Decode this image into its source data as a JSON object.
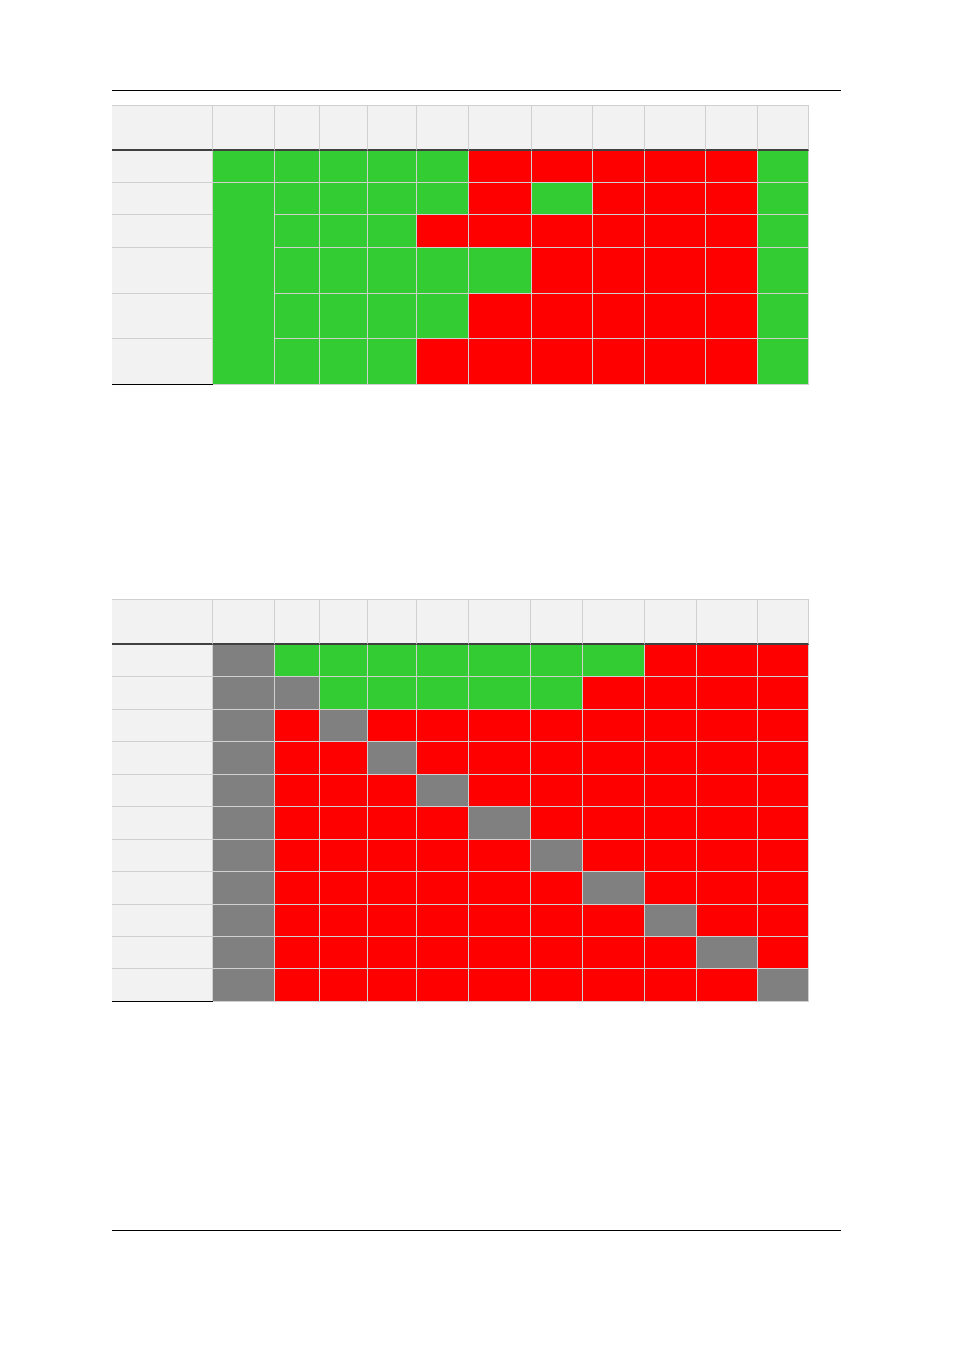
{
  "table_1": {
    "rows": [
      [
        "#33cc33",
        "#33cc33",
        "#33cc33",
        "#33cc33",
        "#33cc33",
        "#ff0000",
        "#ff0000",
        "#ff0000",
        "#ff0000",
        "#ff0000",
        "#33cc33"
      ],
      [
        "#33cc33",
        "#33cc33",
        "#33cc33",
        "#33cc33",
        "#33cc33",
        "#ff0000",
        "#33cc33",
        "#ff0000",
        "#ff0000",
        "#ff0000",
        "#33cc33"
      ],
      [
        "#33cc33",
        "#33cc33",
        "#33cc33",
        "#ff0000",
        "#ff0000",
        "#ff0000",
        "#ff0000",
        "#ff0000",
        "#ff0000",
        "#33cc33"
      ],
      [
        "#33cc33",
        "#33cc33",
        "#33cc33",
        "#33cc33",
        "#33cc33",
        "#ff0000",
        "#ff0000",
        "#ff0000",
        "#ff0000",
        "#33cc33"
      ],
      [
        "#33cc33",
        "#33cc33",
        "#33cc33",
        "#33cc33",
        "#ff0000",
        "#ff0000",
        "#ff0000",
        "#ff0000",
        "#ff0000",
        "#33cc33"
      ],
      [
        "#33cc33",
        "#33cc33",
        "#33cc33",
        "#ff0000",
        "#ff0000",
        "#ff0000",
        "#ff0000",
        "#ff0000",
        "#ff0000",
        "#33cc33"
      ]
    ]
  },
  "table_2": {
    "rows": [
      [
        "#808080",
        "#33cc33",
        "#33cc33",
        "#33cc33",
        "#33cc33",
        "#33cc33",
        "#33cc33",
        "#33cc33",
        "#ff0000",
        "#ff0000",
        "#ff0000"
      ],
      [
        "#808080",
        "#808080",
        "#33cc33",
        "#33cc33",
        "#33cc33",
        "#33cc33",
        "#33cc33",
        "#ff0000",
        "#ff0000",
        "#ff0000",
        "#ff0000"
      ],
      [
        "#808080",
        "#ff0000",
        "#808080",
        "#ff0000",
        "#ff0000",
        "#ff0000",
        "#ff0000",
        "#ff0000",
        "#ff0000",
        "#ff0000",
        "#ff0000"
      ],
      [
        "#808080",
        "#ff0000",
        "#ff0000",
        "#808080",
        "#ff0000",
        "#ff0000",
        "#ff0000",
        "#ff0000",
        "#ff0000",
        "#ff0000",
        "#ff0000"
      ],
      [
        "#808080",
        "#ff0000",
        "#ff0000",
        "#ff0000",
        "#808080",
        "#ff0000",
        "#ff0000",
        "#ff0000",
        "#ff0000",
        "#ff0000",
        "#ff0000"
      ],
      [
        "#808080",
        "#ff0000",
        "#ff0000",
        "#ff0000",
        "#ff0000",
        "#808080",
        "#ff0000",
        "#ff0000",
        "#ff0000",
        "#ff0000",
        "#ff0000"
      ],
      [
        "#808080",
        "#ff0000",
        "#ff0000",
        "#ff0000",
        "#ff0000",
        "#ff0000",
        "#808080",
        "#ff0000",
        "#ff0000",
        "#ff0000",
        "#ff0000"
      ],
      [
        "#808080",
        "#ff0000",
        "#ff0000",
        "#ff0000",
        "#ff0000",
        "#ff0000",
        "#ff0000",
        "#808080",
        "#ff0000",
        "#ff0000",
        "#ff0000"
      ],
      [
        "#808080",
        "#ff0000",
        "#ff0000",
        "#ff0000",
        "#ff0000",
        "#ff0000",
        "#ff0000",
        "#ff0000",
        "#808080",
        "#ff0000",
        "#ff0000"
      ],
      [
        "#808080",
        "#ff0000",
        "#ff0000",
        "#ff0000",
        "#ff0000",
        "#ff0000",
        "#ff0000",
        "#ff0000",
        "#ff0000",
        "#808080",
        "#ff0000"
      ],
      [
        "#808080",
        "#ff0000",
        "#ff0000",
        "#ff0000",
        "#ff0000",
        "#ff0000",
        "#ff0000",
        "#ff0000",
        "#ff0000",
        "#ff0000",
        "#808080"
      ]
    ]
  }
}
